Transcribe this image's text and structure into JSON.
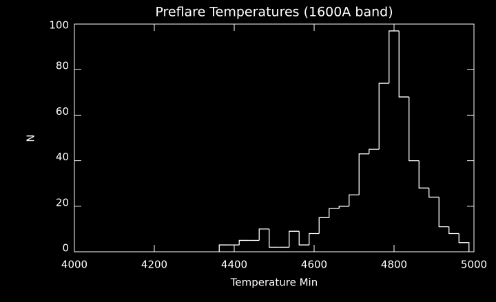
{
  "chart_data": {
    "type": "histogram",
    "title": "Preflare Temperatures (1600A band)",
    "x_label": "Temperature Min",
    "y_label": "N",
    "bins": [
      4362.5,
      4387.5,
      4412.5,
      4437.5,
      4462.5,
      4487.5,
      4512.5,
      4537.5,
      4562.5,
      4587.5,
      4612.5,
      4637.5,
      4662.5,
      4687.5,
      4712.5,
      4737.5,
      4762.5,
      4787.5,
      4812.5,
      4837.5,
      4862.5,
      4887.5,
      4912.5,
      4937.5,
      4962.5,
      4987.5
    ],
    "values": [
      3,
      3,
      5,
      5,
      10,
      2,
      2,
      9,
      3,
      8,
      15,
      19,
      20,
      25,
      43,
      45,
      74,
      97,
      68,
      40,
      28,
      24,
      11,
      8,
      4
    ],
    "color": "#ffffff",
    "xlim": [
      4000,
      5000
    ],
    "xticks": [
      4000,
      4200,
      4400,
      4600,
      4800,
      5000
    ],
    "ylim": [
      0,
      100
    ],
    "yticks": [
      0,
      20,
      40,
      60,
      80,
      100
    ]
  }
}
